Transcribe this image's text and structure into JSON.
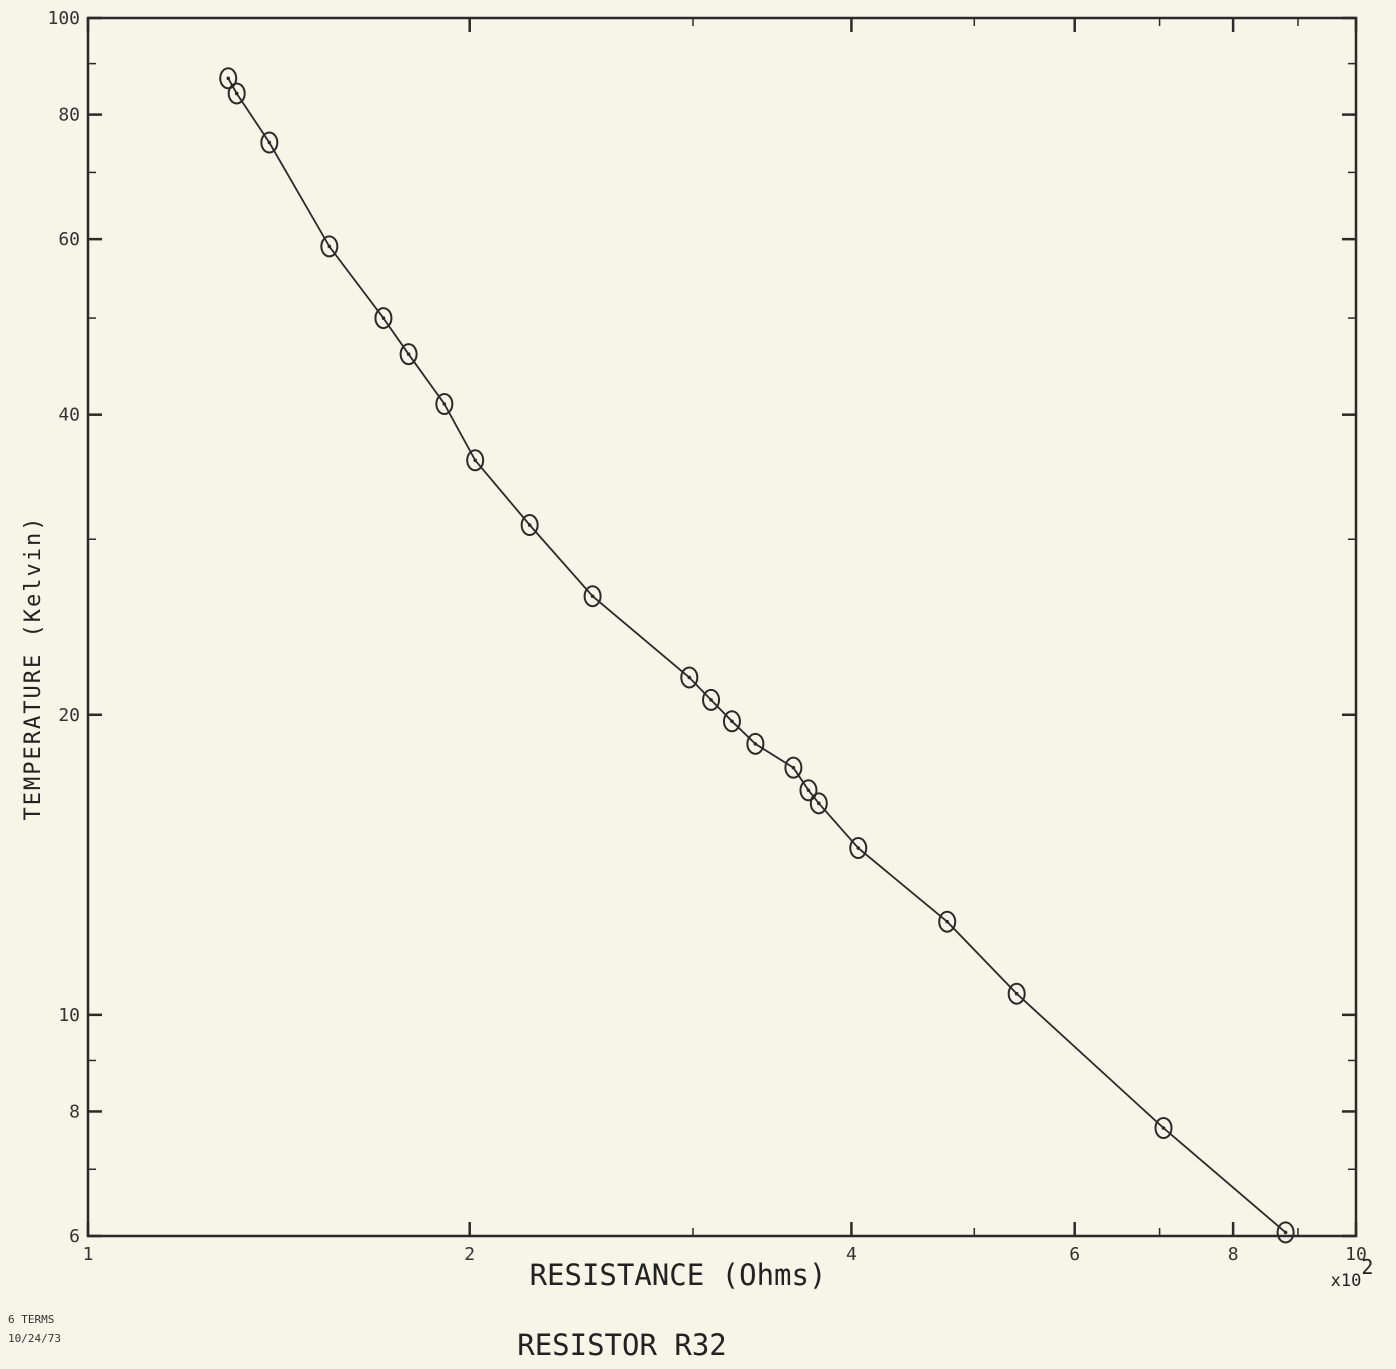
{
  "chart_data": {
    "type": "scatter",
    "title": "RESISTOR R32",
    "xlabel": "RESISTANCE (Ohms)",
    "ylabel": "TEMPERATURE (Kelvin)",
    "x_multiplier_label": "x10",
    "x_multiplier_exp": "2",
    "x_scale": "log",
    "y_scale": "log",
    "xlim": [
      1,
      10
    ],
    "ylim": [
      6,
      100
    ],
    "x_ticks": [
      {
        "value": 1,
        "label": "1"
      },
      {
        "value": 2,
        "label": "2"
      },
      {
        "value": 4,
        "label": "4"
      },
      {
        "value": 6,
        "label": "6"
      },
      {
        "value": 8,
        "label": "8"
      },
      {
        "value": 10,
        "label": "10"
      }
    ],
    "y_ticks": [
      {
        "value": 6,
        "label": "6"
      },
      {
        "value": 8,
        "label": "8"
      },
      {
        "value": 10,
        "label": "10"
      },
      {
        "value": 20,
        "label": "20"
      },
      {
        "value": 40,
        "label": "40"
      },
      {
        "value": 60,
        "label": "60"
      },
      {
        "value": 80,
        "label": "80"
      },
      {
        "value": 100,
        "label": "100"
      }
    ],
    "grid": false,
    "fit_line": true,
    "series": [
      {
        "x": [
          1.29,
          1.31,
          1.39,
          1.55,
          1.71,
          1.79,
          1.91,
          2.02,
          2.23,
          2.5,
          2.98,
          3.1,
          3.22,
          3.36,
          3.6,
          3.7,
          3.77,
          4.05,
          4.76,
          5.4,
          7.05,
          8.8
        ],
        "y": [
          87,
          84,
          75,
          59,
          50,
          46,
          41,
          36,
          31,
          26.3,
          21.8,
          20.7,
          19.7,
          18.7,
          17.7,
          16.8,
          16.3,
          14.7,
          12.4,
          10.5,
          7.7,
          6.05
        ]
      }
    ],
    "annotations": [
      "6 TERMS",
      "10/24/73"
    ]
  }
}
